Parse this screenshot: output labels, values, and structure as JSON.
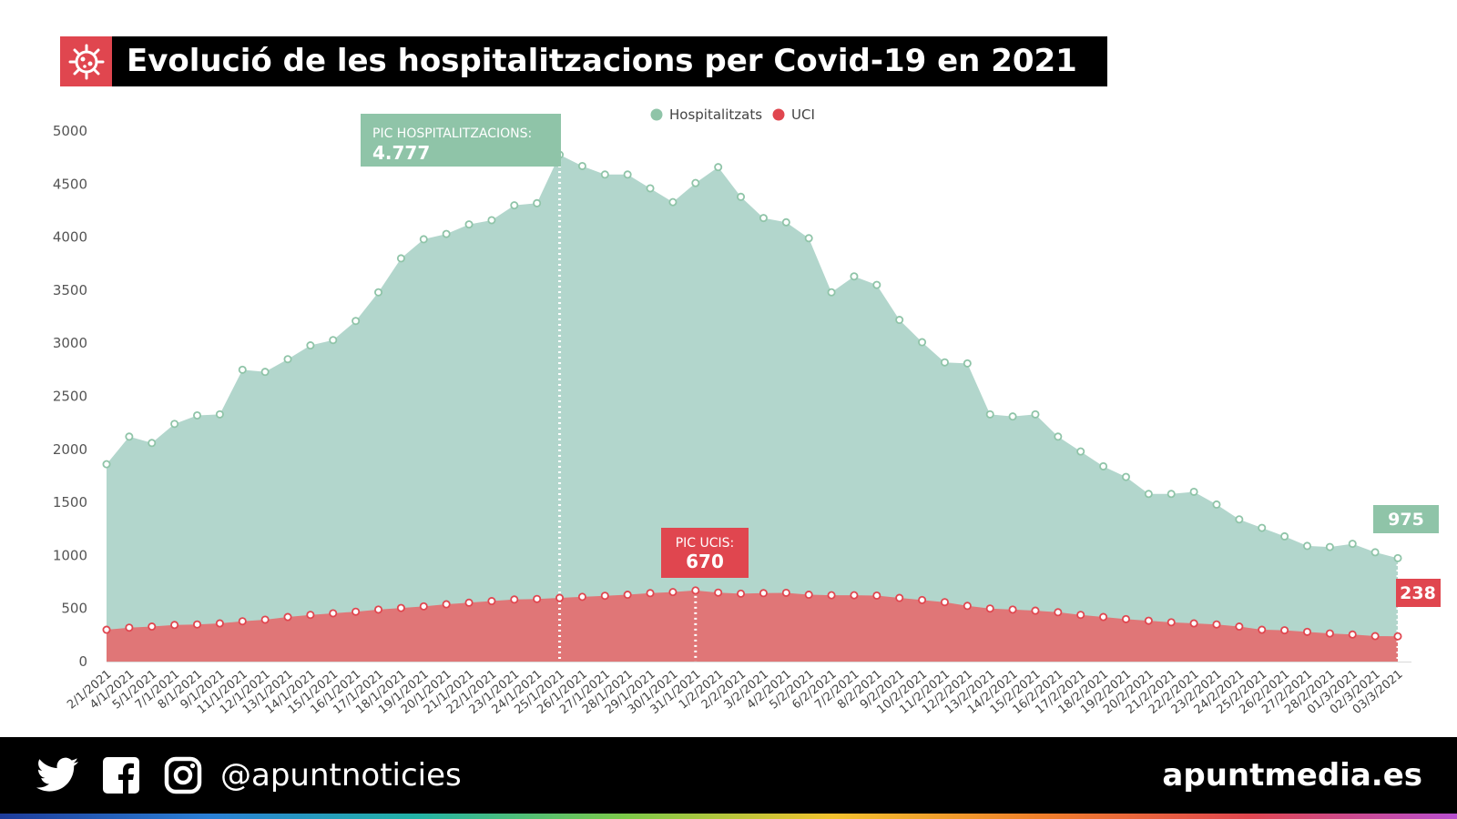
{
  "title": "Evolució de les hospitalitzacions per Covid-19 en 2021",
  "footer": {
    "handle": "@apuntnoticies",
    "site": "apuntmedia.es",
    "icons": [
      "twitter-icon",
      "facebook-icon",
      "instagram-icon"
    ]
  },
  "colors": {
    "hospitalitzats_fill": "#b2d6cc",
    "hospitalitzats_marker": "#8fc4a8",
    "uci_fill": "#e07677",
    "uci_marker": "#e0464f",
    "accent_red": "#e0464f",
    "accent_green": "#8fc4a8"
  },
  "chart_data": {
    "type": "area",
    "title": "Evolució de les hospitalitzacions per Covid-19 en 2021",
    "xlabel": "",
    "ylabel": "",
    "ylim": [
      0,
      5000
    ],
    "yticks": [
      0,
      500,
      1000,
      1500,
      2000,
      2500,
      3000,
      3500,
      4000,
      4500,
      5000
    ],
    "grid": false,
    "legend_position": "top-center",
    "categories": [
      "2/1/2021",
      "4/1/2021",
      "5/1/2021",
      "7/1/2021",
      "8/1/2021",
      "9/1/2021",
      "11/1/2021",
      "12/1/2021",
      "13/1/2021",
      "14/1/2021",
      "15/1/2021",
      "16/1/2021",
      "17/1/2021",
      "18/1/2021",
      "19/1/2021",
      "20/1/2021",
      "21/1/2021",
      "22/1/2021",
      "23/1/2021",
      "24/1/2021",
      "25/1/2021",
      "26/1/2021",
      "27/1/2021",
      "28/1/2021",
      "29/1/2021",
      "30/1/2021",
      "31/1/2021",
      "1/2/2021",
      "2/2/2021",
      "3/2/2021",
      "4/2/2021",
      "5/2/2021",
      "6/2/2021",
      "7/2/2021",
      "8/2/2021",
      "9/2/2021",
      "10/2/2021",
      "11/2/2021",
      "12/2/2021",
      "13/2/2021",
      "14/2/2021",
      "15/2/2021",
      "16/2/2021",
      "17/2/2021",
      "18/2/2021",
      "19/2/2021",
      "20/2/2021",
      "21/2/2021",
      "22/2/2021",
      "23/2/2021",
      "24/2/2021",
      "25/2/2021",
      "26/2/2021",
      "27/2/2021",
      "28/2/2021",
      "01/3/2021",
      "02/3/2021",
      "03/3/2021"
    ],
    "series": [
      {
        "name": "Hospitalitzats",
        "values": [
          1860,
          2120,
          2060,
          2240,
          2320,
          2330,
          2750,
          2730,
          2850,
          2980,
          3030,
          3210,
          3480,
          3800,
          3980,
          4030,
          4120,
          4160,
          4300,
          4320,
          4777,
          4670,
          4590,
          4590,
          4460,
          4330,
          4510,
          4660,
          4380,
          4180,
          4140,
          3990,
          3480,
          3630,
          3550,
          3220,
          3010,
          2820,
          2810,
          2330,
          2310,
          2330,
          2120,
          1980,
          1840,
          1740,
          1580,
          1580,
          1600,
          1480,
          1340,
          1260,
          1180,
          1090,
          1080,
          1110,
          1030,
          975
        ],
        "markers": true
      },
      {
        "name": "UCI",
        "values": [
          300,
          320,
          330,
          345,
          350,
          360,
          380,
          395,
          420,
          440,
          455,
          470,
          490,
          505,
          520,
          540,
          555,
          570,
          585,
          590,
          600,
          610,
          620,
          630,
          645,
          655,
          670,
          650,
          640,
          645,
          648,
          630,
          625,
          625,
          622,
          600,
          580,
          560,
          525,
          500,
          490,
          480,
          465,
          440,
          420,
          400,
          385,
          370,
          360,
          350,
          330,
          300,
          295,
          280,
          265,
          255,
          240,
          238
        ],
        "markers": true
      }
    ],
    "annotations": [
      {
        "label": "PIC HOSPITALITZACIONS:",
        "value": "4.777",
        "category": "25/1/2021"
      },
      {
        "label": "PIC UCIS:",
        "value": "670",
        "category": "31/1/2021"
      },
      {
        "label": "",
        "value": "975",
        "category": "03/3/2021"
      },
      {
        "label": "",
        "value": "238",
        "category": "03/3/2021"
      }
    ]
  }
}
